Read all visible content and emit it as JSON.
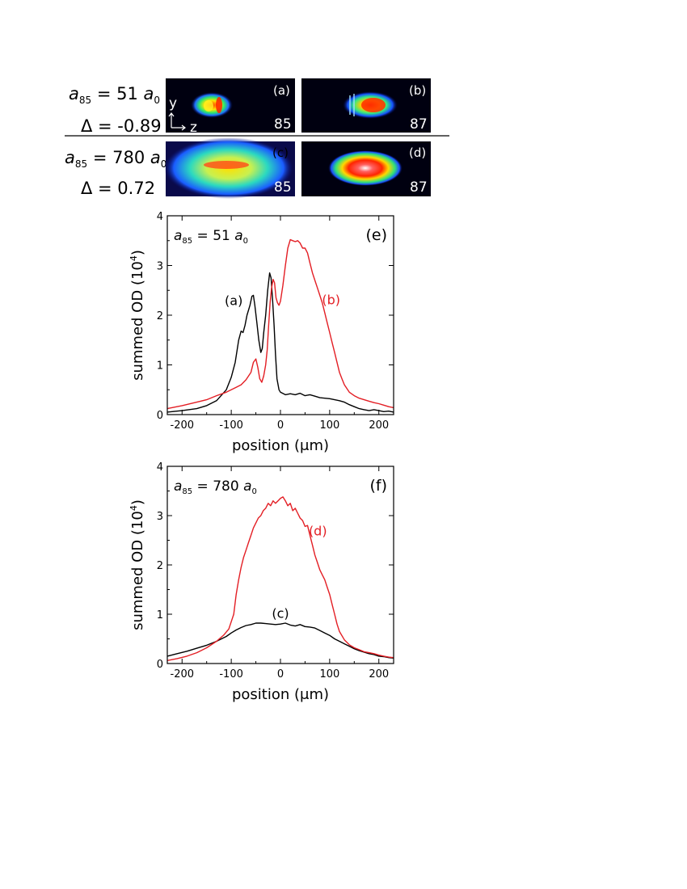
{
  "rows": [
    {
      "a_label": {
        "sym": "a",
        "sub": "85",
        "mid": " = 51 ",
        "unit": "a",
        "unit_sub": "0"
      },
      "delta_label": "Δ = -0.89",
      "panels": [
        {
          "letter": "(a)",
          "isotope": "85"
        },
        {
          "letter": "(b)",
          "isotope": "87"
        }
      ],
      "axis_labels": {
        "y": "y",
        "z": "z"
      }
    },
    {
      "a_label": {
        "sym": "a",
        "sub": "85",
        "mid": " = 780 ",
        "unit": "a",
        "unit_sub": "0"
      },
      "delta_label": "Δ = 0.72",
      "panels": [
        {
          "letter": "(c)",
          "isotope": "85"
        },
        {
          "letter": "(d)",
          "isotope": "87"
        }
      ]
    }
  ],
  "chart_data": [
    {
      "type": "line",
      "panel_label": "(e)",
      "annotation": {
        "sym": "a",
        "sub": "85",
        "mid": " = 51 ",
        "unit": "a",
        "unit_sub": "0"
      },
      "xlabel_text": "position (",
      "xlabel_unit": "μm",
      "xlabel_end": ")",
      "ylabel_text": "summed OD (10",
      "ylabel_exp": "4",
      "ylabel_end": ")",
      "xlim": [
        -230,
        230
      ],
      "ylim": [
        0,
        4
      ],
      "xticks": [
        -200,
        -100,
        0,
        100,
        200
      ],
      "yticks": [
        0,
        1,
        2,
        3,
        4
      ],
      "series": [
        {
          "name": "(a)",
          "color": "#000000",
          "label_pos": [
            -95,
            2.2
          ],
          "points": [
            [
              -230,
              0.05
            ],
            [
              -200,
              0.08
            ],
            [
              -170,
              0.12
            ],
            [
              -150,
              0.18
            ],
            [
              -130,
              0.28
            ],
            [
              -110,
              0.5
            ],
            [
              -100,
              0.75
            ],
            [
              -92,
              1.05
            ],
            [
              -85,
              1.5
            ],
            [
              -80,
              1.68
            ],
            [
              -76,
              1.65
            ],
            [
              -72,
              1.8
            ],
            [
              -68,
              2.0
            ],
            [
              -62,
              2.2
            ],
            [
              -58,
              2.38
            ],
            [
              -55,
              2.4
            ],
            [
              -52,
              2.2
            ],
            [
              -48,
              1.85
            ],
            [
              -44,
              1.5
            ],
            [
              -40,
              1.25
            ],
            [
              -37,
              1.33
            ],
            [
              -34,
              1.65
            ],
            [
              -30,
              2.0
            ],
            [
              -26,
              2.5
            ],
            [
              -22,
              2.85
            ],
            [
              -19,
              2.75
            ],
            [
              -16,
              2.3
            ],
            [
              -13,
              1.8
            ],
            [
              -10,
              1.2
            ],
            [
              -7,
              0.72
            ],
            [
              -3,
              0.5
            ],
            [
              0,
              0.45
            ],
            [
              10,
              0.4
            ],
            [
              20,
              0.42
            ],
            [
              30,
              0.4
            ],
            [
              40,
              0.43
            ],
            [
              50,
              0.38
            ],
            [
              60,
              0.4
            ],
            [
              70,
              0.37
            ],
            [
              80,
              0.34
            ],
            [
              90,
              0.33
            ],
            [
              100,
              0.32
            ],
            [
              110,
              0.3
            ],
            [
              120,
              0.28
            ],
            [
              130,
              0.25
            ],
            [
              140,
              0.2
            ],
            [
              150,
              0.16
            ],
            [
              160,
              0.12
            ],
            [
              170,
              0.1
            ],
            [
              180,
              0.08
            ],
            [
              190,
              0.1
            ],
            [
              200,
              0.08
            ],
            [
              210,
              0.06
            ],
            [
              220,
              0.07
            ],
            [
              230,
              0.05
            ]
          ]
        },
        {
          "name": "(b)",
          "color": "#e31e24",
          "label_pos": [
            103,
            2.22
          ],
          "points": [
            [
              -230,
              0.12
            ],
            [
              -200,
              0.18
            ],
            [
              -170,
              0.25
            ],
            [
              -150,
              0.3
            ],
            [
              -130,
              0.38
            ],
            [
              -110,
              0.45
            ],
            [
              -100,
              0.5
            ],
            [
              -90,
              0.55
            ],
            [
              -80,
              0.6
            ],
            [
              -70,
              0.7
            ],
            [
              -60,
              0.85
            ],
            [
              -55,
              1.05
            ],
            [
              -50,
              1.12
            ],
            [
              -46,
              0.95
            ],
            [
              -42,
              0.72
            ],
            [
              -38,
              0.65
            ],
            [
              -34,
              0.78
            ],
            [
              -30,
              1.0
            ],
            [
              -27,
              1.3
            ],
            [
              -24,
              1.8
            ],
            [
              -21,
              2.25
            ],
            [
              -18,
              2.55
            ],
            [
              -15,
              2.72
            ],
            [
              -12,
              2.65
            ],
            [
              -9,
              2.35
            ],
            [
              -6,
              2.25
            ],
            [
              -3,
              2.2
            ],
            [
              0,
              2.28
            ],
            [
              5,
              2.6
            ],
            [
              10,
              3.0
            ],
            [
              15,
              3.35
            ],
            [
              20,
              3.52
            ],
            [
              25,
              3.5
            ],
            [
              30,
              3.48
            ],
            [
              35,
              3.5
            ],
            [
              40,
              3.45
            ],
            [
              45,
              3.35
            ],
            [
              50,
              3.35
            ],
            [
              55,
              3.25
            ],
            [
              60,
              3.05
            ],
            [
              65,
              2.85
            ],
            [
              70,
              2.7
            ],
            [
              75,
              2.55
            ],
            [
              80,
              2.4
            ],
            [
              85,
              2.25
            ],
            [
              90,
              2.05
            ],
            [
              95,
              1.85
            ],
            [
              100,
              1.65
            ],
            [
              105,
              1.45
            ],
            [
              110,
              1.25
            ],
            [
              115,
              1.05
            ],
            [
              120,
              0.85
            ],
            [
              125,
              0.72
            ],
            [
              130,
              0.6
            ],
            [
              140,
              0.45
            ],
            [
              150,
              0.38
            ],
            [
              160,
              0.33
            ],
            [
              170,
              0.3
            ],
            [
              180,
              0.27
            ],
            [
              190,
              0.24
            ],
            [
              200,
              0.22
            ],
            [
              210,
              0.19
            ],
            [
              220,
              0.16
            ],
            [
              230,
              0.14
            ]
          ]
        }
      ]
    },
    {
      "type": "line",
      "panel_label": "(f)",
      "annotation": {
        "sym": "a",
        "sub": "85",
        "mid": " = 780 ",
        "unit": "a",
        "unit_sub": "0"
      },
      "xlabel_text": "position (",
      "xlabel_unit": "μm",
      "xlabel_end": ")",
      "ylabel_text": "summed OD (10",
      "ylabel_exp": "4",
      "ylabel_end": ")",
      "xlim": [
        -230,
        230
      ],
      "ylim": [
        0,
        4
      ],
      "xticks": [
        -200,
        -100,
        0,
        100,
        200
      ],
      "yticks": [
        0,
        1,
        2,
        3,
        4
      ],
      "series": [
        {
          "name": "(c)",
          "color": "#000000",
          "label_pos": [
            0,
            0.93
          ],
          "points": [
            [
              -230,
              0.15
            ],
            [
              -210,
              0.2
            ],
            [
              -190,
              0.25
            ],
            [
              -170,
              0.31
            ],
            [
              -150,
              0.37
            ],
            [
              -130,
              0.45
            ],
            [
              -110,
              0.55
            ],
            [
              -100,
              0.62
            ],
            [
              -90,
              0.68
            ],
            [
              -80,
              0.73
            ],
            [
              -70,
              0.77
            ],
            [
              -60,
              0.79
            ],
            [
              -50,
              0.82
            ],
            [
              -40,
              0.82
            ],
            [
              -30,
              0.81
            ],
            [
              -20,
              0.8
            ],
            [
              -10,
              0.79
            ],
            [
              0,
              0.8
            ],
            [
              10,
              0.82
            ],
            [
              20,
              0.78
            ],
            [
              30,
              0.76
            ],
            [
              40,
              0.79
            ],
            [
              50,
              0.75
            ],
            [
              60,
              0.74
            ],
            [
              70,
              0.72
            ],
            [
              80,
              0.67
            ],
            [
              90,
              0.62
            ],
            [
              100,
              0.57
            ],
            [
              110,
              0.5
            ],
            [
              120,
              0.45
            ],
            [
              130,
              0.4
            ],
            [
              140,
              0.35
            ],
            [
              150,
              0.3
            ],
            [
              160,
              0.26
            ],
            [
              170,
              0.23
            ],
            [
              180,
              0.2
            ],
            [
              190,
              0.18
            ],
            [
              200,
              0.15
            ],
            [
              210,
              0.14
            ],
            [
              220,
              0.12
            ],
            [
              230,
              0.11
            ]
          ]
        },
        {
          "name": "(d)",
          "color": "#e31e24",
          "label_pos": [
            76,
            2.6
          ],
          "points": [
            [
              -230,
              0.06
            ],
            [
              -210,
              0.1
            ],
            [
              -190,
              0.15
            ],
            [
              -170,
              0.22
            ],
            [
              -150,
              0.32
            ],
            [
              -130,
              0.45
            ],
            [
              -115,
              0.58
            ],
            [
              -105,
              0.7
            ],
            [
              -95,
              1.0
            ],
            [
              -90,
              1.4
            ],
            [
              -85,
              1.7
            ],
            [
              -80,
              1.95
            ],
            [
              -75,
              2.15
            ],
            [
              -70,
              2.3
            ],
            [
              -65,
              2.45
            ],
            [
              -60,
              2.6
            ],
            [
              -55,
              2.75
            ],
            [
              -50,
              2.85
            ],
            [
              -45,
              2.95
            ],
            [
              -40,
              3.0
            ],
            [
              -35,
              3.1
            ],
            [
              -30,
              3.15
            ],
            [
              -25,
              3.25
            ],
            [
              -20,
              3.2
            ],
            [
              -15,
              3.3
            ],
            [
              -10,
              3.25
            ],
            [
              -5,
              3.3
            ],
            [
              0,
              3.35
            ],
            [
              5,
              3.38
            ],
            [
              10,
              3.3
            ],
            [
              15,
              3.2
            ],
            [
              20,
              3.25
            ],
            [
              25,
              3.1
            ],
            [
              30,
              3.15
            ],
            [
              35,
              3.05
            ],
            [
              40,
              2.95
            ],
            [
              45,
              2.9
            ],
            [
              50,
              2.78
            ],
            [
              55,
              2.8
            ],
            [
              60,
              2.6
            ],
            [
              65,
              2.4
            ],
            [
              70,
              2.2
            ],
            [
              75,
              2.05
            ],
            [
              80,
              1.9
            ],
            [
              85,
              1.8
            ],
            [
              90,
              1.7
            ],
            [
              95,
              1.55
            ],
            [
              100,
              1.4
            ],
            [
              105,
              1.2
            ],
            [
              110,
              1.0
            ],
            [
              115,
              0.8
            ],
            [
              120,
              0.65
            ],
            [
              130,
              0.48
            ],
            [
              140,
              0.38
            ],
            [
              150,
              0.32
            ],
            [
              160,
              0.28
            ],
            [
              170,
              0.24
            ],
            [
              180,
              0.22
            ],
            [
              190,
              0.2
            ],
            [
              200,
              0.17
            ],
            [
              210,
              0.15
            ],
            [
              220,
              0.13
            ],
            [
              230,
              0.12
            ]
          ]
        }
      ]
    }
  ]
}
